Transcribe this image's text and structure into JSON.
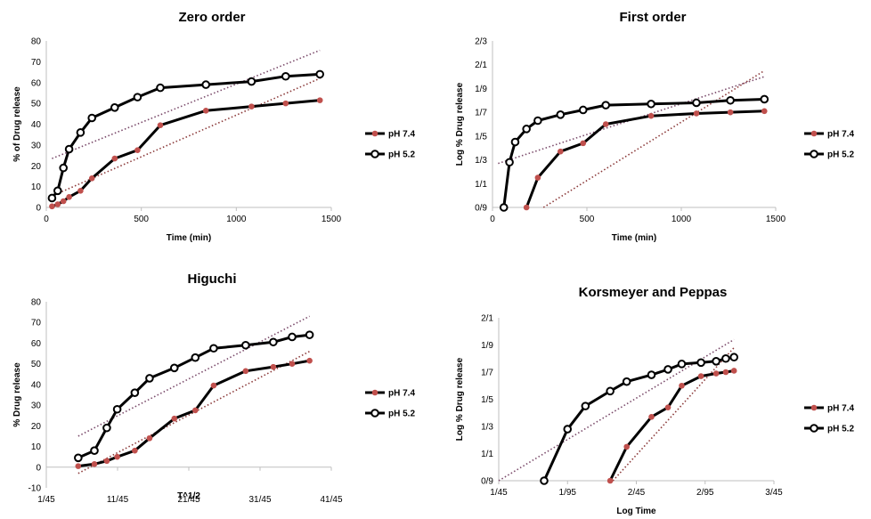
{
  "colors": {
    "ph74": "#c0504d",
    "ph52_marker": "#ffffff",
    "line": "#000000",
    "trend74": "#8b3a3a",
    "trend52": "#7a4a6a",
    "axis": "#bfbfbf"
  },
  "chart_data": [
    {
      "type": "line",
      "title": "Zero order",
      "xlabel": "Time (min)",
      "ylabel": "% of Drug release",
      "xlim": [
        0,
        1500
      ],
      "ylim": [
        0,
        80
      ],
      "x_ticks": [
        "0",
        "500",
        "1000",
        "1500"
      ],
      "y_ticks": [
        "0",
        "10",
        "20",
        "30",
        "40",
        "50",
        "60",
        "70",
        "80"
      ],
      "grid": false,
      "legend_position": "right",
      "series": [
        {
          "name": "pH 7.4",
          "x": [
            30,
            60,
            90,
            120,
            180,
            240,
            360,
            480,
            600,
            840,
            1080,
            1260,
            1440
          ],
          "y": [
            0.5,
            1.5,
            3,
            5,
            8,
            14,
            23.5,
            27.5,
            39.5,
            46.5,
            48.5,
            50,
            51.5
          ]
        },
        {
          "name": "pH 5.2",
          "x": [
            30,
            60,
            90,
            120,
            180,
            240,
            360,
            480,
            600,
            840,
            1080,
            1260,
            1440
          ],
          "y": [
            4.5,
            8,
            19,
            28,
            36,
            43,
            48,
            53,
            57.5,
            59,
            60.5,
            63,
            64
          ]
        }
      ],
      "trendlines": [
        {
          "x": [
            30,
            1440
          ],
          "y": [
            5.5,
            62
          ]
        },
        {
          "x": [
            30,
            1440
          ],
          "y": [
            23.5,
            75.5
          ]
        }
      ]
    },
    {
      "type": "line",
      "title": "First order",
      "xlabel": "Time (min)",
      "ylabel": "Log % Drug release",
      "xlim": [
        0,
        1500
      ],
      "ylim": [
        0.9,
        2.3
      ],
      "x_ticks": [
        "0",
        "500",
        "1000",
        "1500"
      ],
      "y_ticks": [
        "0/9",
        "1/1",
        "1/3",
        "1/5",
        "1/7",
        "1/9",
        "2/1",
        "2/3"
      ],
      "grid": false,
      "legend_position": "right",
      "series": [
        {
          "name": "pH 7.4",
          "x": [
            180,
            240,
            360,
            480,
            600,
            840,
            1080,
            1260,
            1440
          ],
          "y": [
            0.9,
            1.15,
            1.37,
            1.44,
            1.6,
            1.67,
            1.69,
            1.7,
            1.71
          ]
        },
        {
          "name": "pH 5.2",
          "x": [
            60,
            90,
            120,
            180,
            240,
            360,
            480,
            600,
            840,
            1080,
            1260,
            1440
          ],
          "y": [
            0.9,
            1.28,
            1.45,
            1.56,
            1.63,
            1.68,
            1.72,
            1.76,
            1.77,
            1.78,
            1.8,
            1.81
          ]
        }
      ],
      "trendlines": [
        {
          "x": [
            270,
            1440
          ],
          "y": [
            0.9,
            2.05
          ]
        },
        {
          "x": [
            30,
            1440
          ],
          "y": [
            1.27,
            2.0
          ]
        }
      ]
    },
    {
      "type": "line",
      "title": "Higuchi",
      "xlabel": "T^1/2",
      "ylabel": "% Drug release",
      "xlim": [
        1,
        41
      ],
      "ylim": [
        -10,
        80
      ],
      "x_ticks": [
        "1/45",
        "11/45",
        "21/45",
        "31/45",
        "41/45"
      ],
      "y_ticks": [
        "-10",
        "0",
        "10",
        "20",
        "30",
        "40",
        "50",
        "60",
        "70",
        "80"
      ],
      "grid": false,
      "legend_position": "right",
      "series": [
        {
          "name": "pH 7.4",
          "x": [
            5.48,
            7.75,
            9.49,
            10.95,
            13.42,
            15.49,
            18.97,
            21.91,
            24.49,
            28.98,
            32.86,
            35.5,
            37.95
          ],
          "y": [
            0.5,
            1.5,
            3,
            5,
            8,
            14,
            23.5,
            27.5,
            39.5,
            46.5,
            48.5,
            50,
            51.5
          ]
        },
        {
          "name": "pH 5.2",
          "x": [
            5.48,
            7.75,
            9.49,
            10.95,
            13.42,
            15.49,
            18.97,
            21.91,
            24.49,
            28.98,
            32.86,
            35.5,
            37.95
          ],
          "y": [
            4.5,
            8,
            19,
            28,
            36,
            43,
            48,
            53,
            57.5,
            59,
            60.5,
            63,
            64
          ]
        }
      ],
      "trendlines": [
        {
          "x": [
            5.48,
            37.95
          ],
          "y": [
            -3,
            56
          ]
        },
        {
          "x": [
            5.48,
            37.95
          ],
          "y": [
            15,
            73
          ]
        }
      ]
    },
    {
      "type": "line",
      "title": "Korsmeyer and Peppas",
      "xlabel": "Log Time",
      "ylabel": "Log % Drug release",
      "xlim": [
        1.45,
        3.45
      ],
      "ylim": [
        0.9,
        2.1
      ],
      "x_ticks": [
        "1/45",
        "1/95",
        "2/45",
        "2/95",
        "3/45"
      ],
      "y_ticks": [
        "0/9",
        "1/1",
        "1/3",
        "1/5",
        "1/7",
        "1/9",
        "2/1"
      ],
      "grid": false,
      "legend_position": "right",
      "series": [
        {
          "name": "pH 7.4",
          "x": [
            2.26,
            2.38,
            2.56,
            2.68,
            2.78,
            2.92,
            3.03,
            3.1,
            3.16
          ],
          "y": [
            0.9,
            1.15,
            1.37,
            1.44,
            1.6,
            1.67,
            1.69,
            1.7,
            1.71
          ]
        },
        {
          "name": "pH 5.2",
          "x": [
            1.78,
            1.95,
            2.08,
            2.26,
            2.38,
            2.56,
            2.68,
            2.78,
            2.92,
            3.03,
            3.1,
            3.16
          ],
          "y": [
            0.9,
            1.28,
            1.45,
            1.56,
            1.63,
            1.68,
            1.72,
            1.76,
            1.77,
            1.78,
            1.8,
            1.81
          ]
        }
      ],
      "trendlines": [
        {
          "x": [
            2.28,
            3.16
          ],
          "y": [
            0.9,
            1.88
          ]
        },
        {
          "x": [
            1.45,
            3.16
          ],
          "y": [
            0.9,
            1.94
          ]
        }
      ]
    }
  ]
}
